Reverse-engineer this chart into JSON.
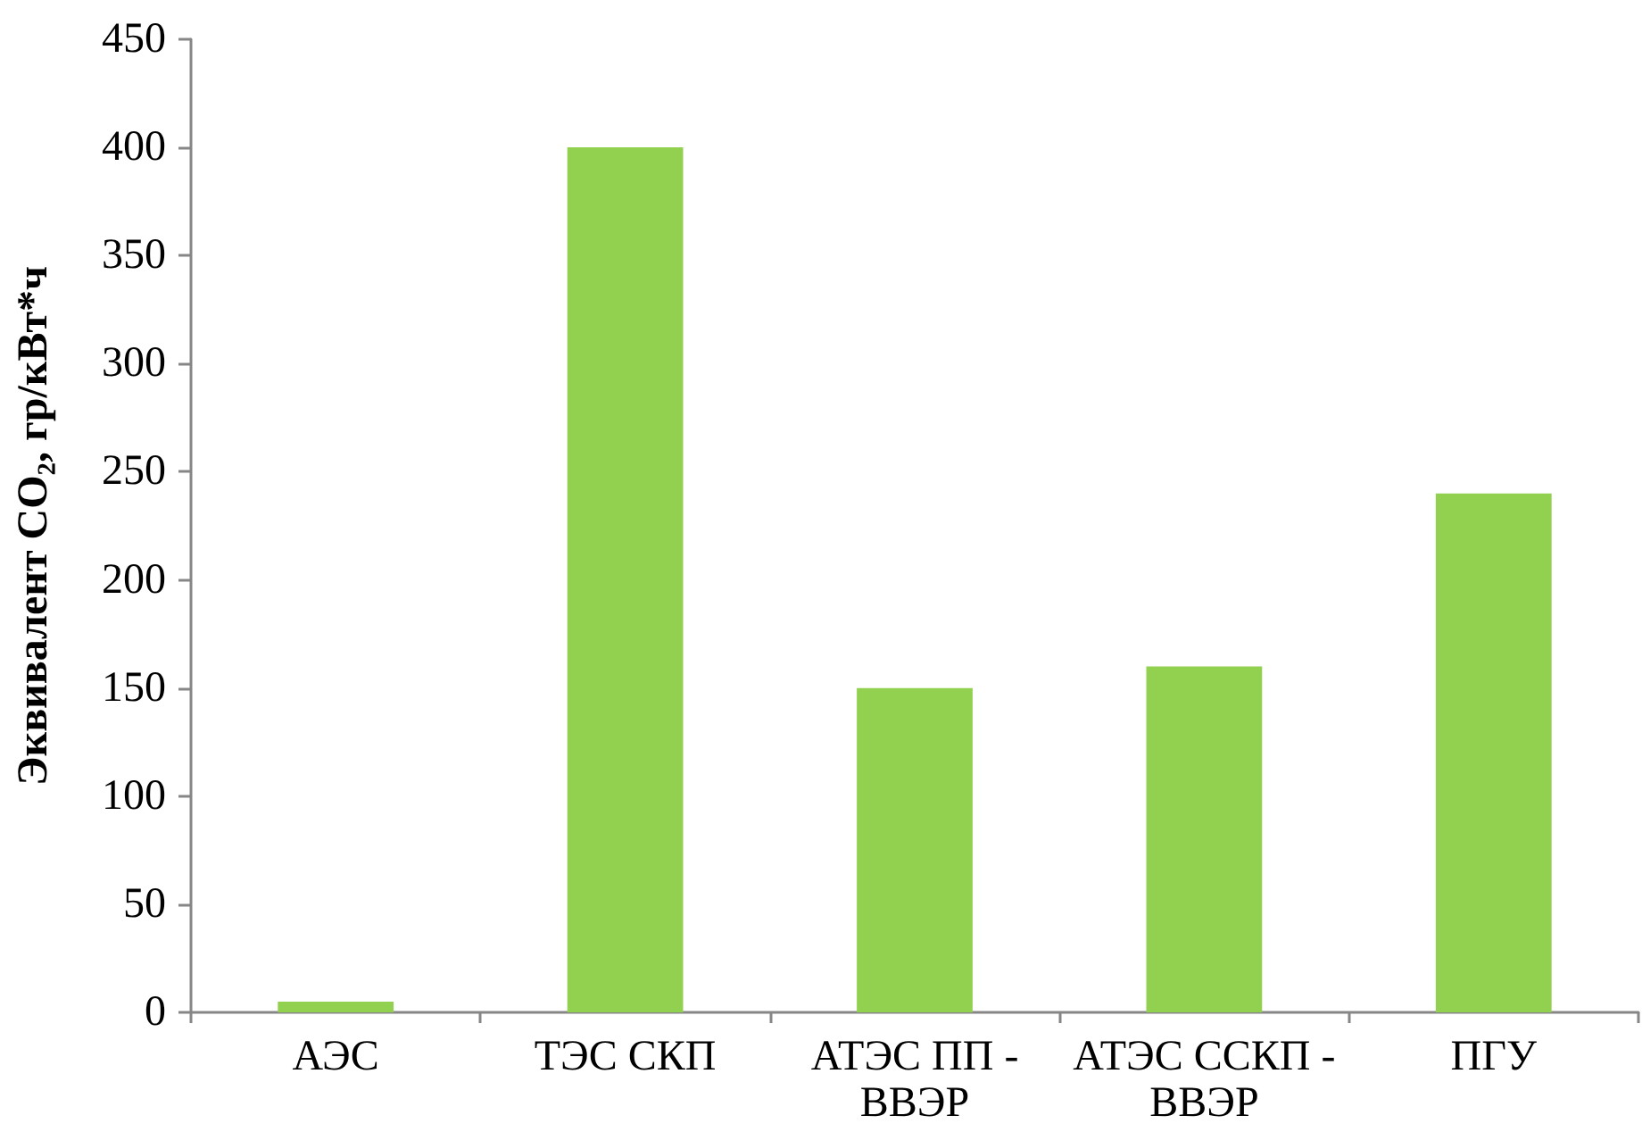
{
  "chart_data": {
    "type": "bar",
    "ylabel": "Эквивалент CO₂, гр/кВт*ч",
    "categories": [
      "АЭС",
      "ТЭС СКП",
      "АТЭС ПП - ВВЭР",
      "АТЭС ССКП - ВВЭР",
      "ПГУ"
    ],
    "values": [
      5,
      400,
      150,
      160,
      240
    ],
    "color": "#92d050",
    "ylim": [
      0,
      450
    ],
    "yticks": [
      0,
      50,
      100,
      150,
      200,
      250,
      300,
      350,
      400,
      450
    ],
    "grid": false,
    "legend": false
  }
}
